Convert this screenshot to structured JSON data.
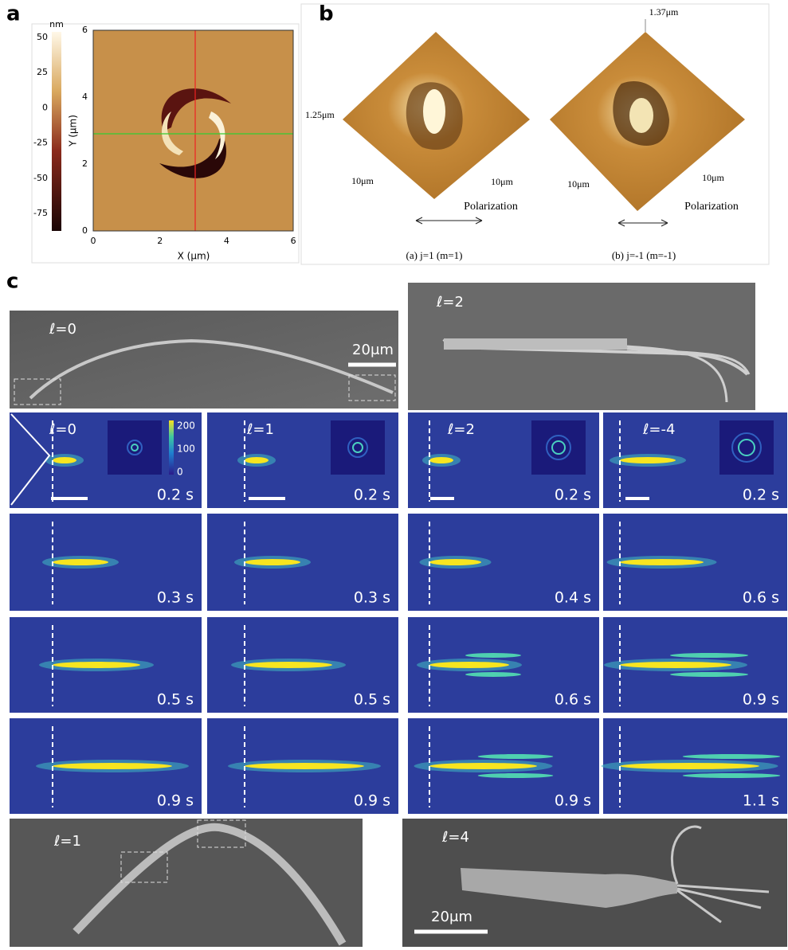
{
  "panel_a": {
    "label": "a",
    "colorbar_unit": "nm",
    "colorbar_ticks": [
      "50",
      "25",
      "0",
      "-25",
      "-50",
      "-75"
    ],
    "x_label": "X (μm)",
    "y_label": "Y (μm)",
    "x_ticks": [
      "0",
      "2",
      "4",
      "6"
    ],
    "y_ticks": [
      "6",
      "4",
      "2",
      "0"
    ]
  },
  "panel_b": {
    "label": "b",
    "height_top": "1.37μm",
    "height_left": "1.25μm",
    "left": {
      "side_a": "10μm",
      "side_b": "10μm",
      "polarization": "Polarization",
      "caption": "(a) j=1 (m=1)"
    },
    "right": {
      "side_a": "10μm",
      "side_b": "10μm",
      "polarization": "Polarization",
      "caption": "(b) j=-1 (m=-1)"
    }
  },
  "panel_c": {
    "label": "c",
    "sem": [
      {
        "label": "ℓ=0",
        "scale": "20μm"
      },
      {
        "label": "ℓ=2"
      },
      {
        "label": "ℓ=1"
      },
      {
        "label": "ℓ=4",
        "scale": "20μm"
      }
    ],
    "inset_colorbar_ticks": [
      "200",
      "100",
      "0"
    ],
    "columns": [
      {
        "label": "ℓ=0",
        "times": [
          "0.2 s",
          "0.3 s",
          "0.5 s",
          "0.9 s"
        ]
      },
      {
        "label": "ℓ=1",
        "times": [
          "0.2 s",
          "0.3 s",
          "0.5 s",
          "0.9 s"
        ]
      },
      {
        "label": "ℓ=2",
        "times": [
          "0.2 s",
          "0.4 s",
          "0.6 s",
          "0.9 s"
        ]
      },
      {
        "label": "ℓ=-4",
        "times": [
          "0.2 s",
          "0.6 s",
          "0.9 s",
          "1.1 s"
        ]
      }
    ]
  }
}
